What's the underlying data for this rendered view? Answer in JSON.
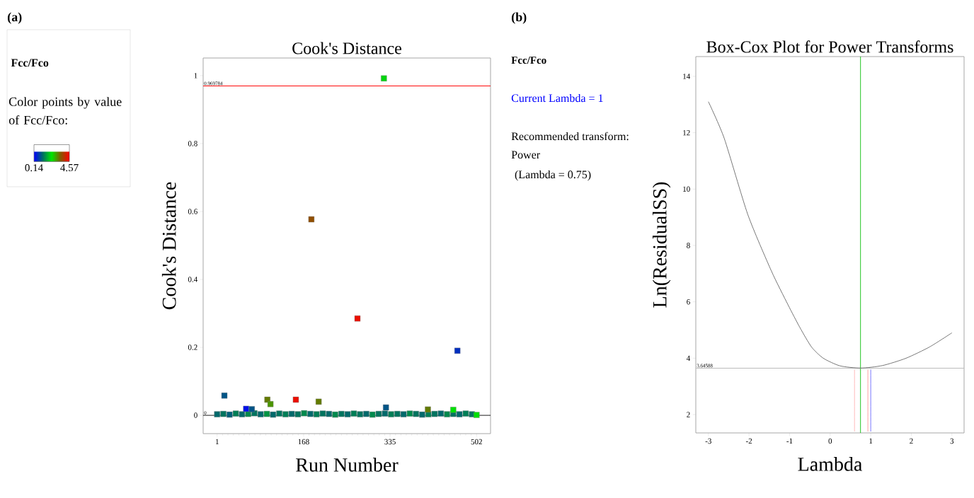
{
  "chart_data": [
    {
      "type": "scatter",
      "title": "Cook's Distance",
      "xlabel": "Run Number",
      "ylabel": "Cook's Distance",
      "legend_title": "Fcc/Fco",
      "clabel": "Color points by value of Fcc/Fco:",
      "clim": [
        0.14,
        4.57
      ],
      "cticks": [
        0.14,
        4.57
      ],
      "marker": "square",
      "x": [
        1,
        13,
        25,
        37,
        49,
        61,
        73,
        85,
        97,
        109,
        121,
        133,
        145,
        157,
        169,
        181,
        193,
        205,
        217,
        229,
        241,
        253,
        265,
        277,
        289,
        301,
        313,
        325,
        337,
        349,
        361,
        373,
        385,
        397,
        409,
        421,
        433,
        445,
        457,
        469,
        481,
        493,
        502,
        323,
        183,
        272,
        465,
        15,
        98,
        104,
        153,
        197,
        57,
        68,
        408,
        327,
        457
      ],
      "values": [
        0.003,
        0.004,
        0.002,
        0.005,
        0.003,
        0.004,
        0.006,
        0.003,
        0.004,
        0.002,
        0.005,
        0.003,
        0.004,
        0.003,
        0.006,
        0.004,
        0.003,
        0.005,
        0.004,
        0.002,
        0.004,
        0.003,
        0.005,
        0.003,
        0.004,
        0.002,
        0.004,
        0.005,
        0.003,
        0.004,
        0.003,
        0.005,
        0.004,
        0.002,
        0.003,
        0.004,
        0.005,
        0.003,
        0.004,
        0.003,
        0.005,
        0.003,
        0.001,
        0.992,
        0.577,
        0.285,
        0.19,
        0.058,
        0.046,
        0.033,
        0.046,
        0.04,
        0.019,
        0.018,
        0.017,
        0.023,
        0.016
      ],
      "cvalues": [
        1.2,
        1.3,
        1.1,
        1.4,
        1.2,
        1.5,
        1.3,
        1.2,
        1.6,
        1.2,
        1.3,
        1.4,
        1.2,
        1.3,
        1.5,
        1.2,
        1.4,
        1.3,
        1.2,
        1.5,
        1.3,
        1.2,
        1.4,
        1.3,
        1.2,
        1.5,
        1.3,
        1.2,
        1.4,
        1.3,
        1.2,
        1.5,
        1.3,
        1.2,
        1.4,
        1.3,
        1.2,
        1.5,
        1.3,
        1.2,
        1.4,
        1.3,
        2.3,
        2.2,
        3.6,
        4.4,
        0.6,
        1.0,
        3.2,
        3.0,
        4.4,
        3.2,
        0.3,
        1.0,
        3.2,
        1.0,
        2.3
      ],
      "xlim": [
        -26,
        529
      ],
      "ylim": [
        -0.054,
        1.052
      ],
      "xticks": [
        1,
        168,
        335,
        502
      ],
      "yticks": [
        0,
        0.2,
        0.4,
        0.6,
        0.8,
        1
      ],
      "ref_lines": [
        {
          "axis": "y",
          "value": 0.969784,
          "label": "0.969784",
          "color": "#ff0000"
        },
        {
          "axis": "y",
          "value": 0,
          "label": "0",
          "color": "#000000"
        }
      ],
      "annotations": [
        "(a)"
      ]
    },
    {
      "type": "line",
      "title": "Box-Cox Plot for Power Transforms",
      "xlabel": "Lambda",
      "ylabel": "Ln(ResidualSS)",
      "marker": "none",
      "series": [
        {
          "color": "#555555",
          "x": [
            -3,
            -2.61,
            -2.03,
            -1.45,
            -1.04,
            -0.75,
            -0.46,
            -0.17,
            0.24,
            0.75,
            1.29,
            1.87,
            2.45,
            3
          ],
          "values": [
            13.1,
            11.8,
            9.1,
            7.1,
            5.9,
            5.1,
            4.4,
            4.0,
            3.73,
            3.65,
            3.74,
            4.0,
            4.4,
            4.9
          ]
        },
        {
          "color": "#ffaaaa",
          "x": [
            0.6,
            0.6
          ],
          "values": [
            1.4,
            3.6
          ]
        },
        {
          "color": "#ff8888",
          "x": [
            0.93,
            0.93
          ],
          "values": [
            1.4,
            3.6
          ]
        },
        {
          "color": "#5555ff",
          "x": [
            1,
            1
          ],
          "values": [
            1.4,
            3.6
          ]
        }
      ],
      "xlim": [
        -3.31,
        3.3
      ],
      "ylim": [
        1.35,
        14.7
      ],
      "xticks": [
        -3,
        -2,
        -1,
        0,
        1,
        2,
        3
      ],
      "yticks": [
        2,
        4,
        6,
        8,
        10,
        12,
        14
      ],
      "ref_lines": [
        {
          "axis": "x",
          "value": 0.75,
          "color": "#00bb00"
        },
        {
          "axis": "y",
          "value": 3.64588,
          "label": "3.64588",
          "color": "#bbbbbb"
        }
      ],
      "annotations": [
        "(b)",
        "Fcc/Fco",
        "Current Lambda = 1",
        "Recommended transform:",
        "Power",
        "(Lambda = 0.75)"
      ]
    }
  ]
}
